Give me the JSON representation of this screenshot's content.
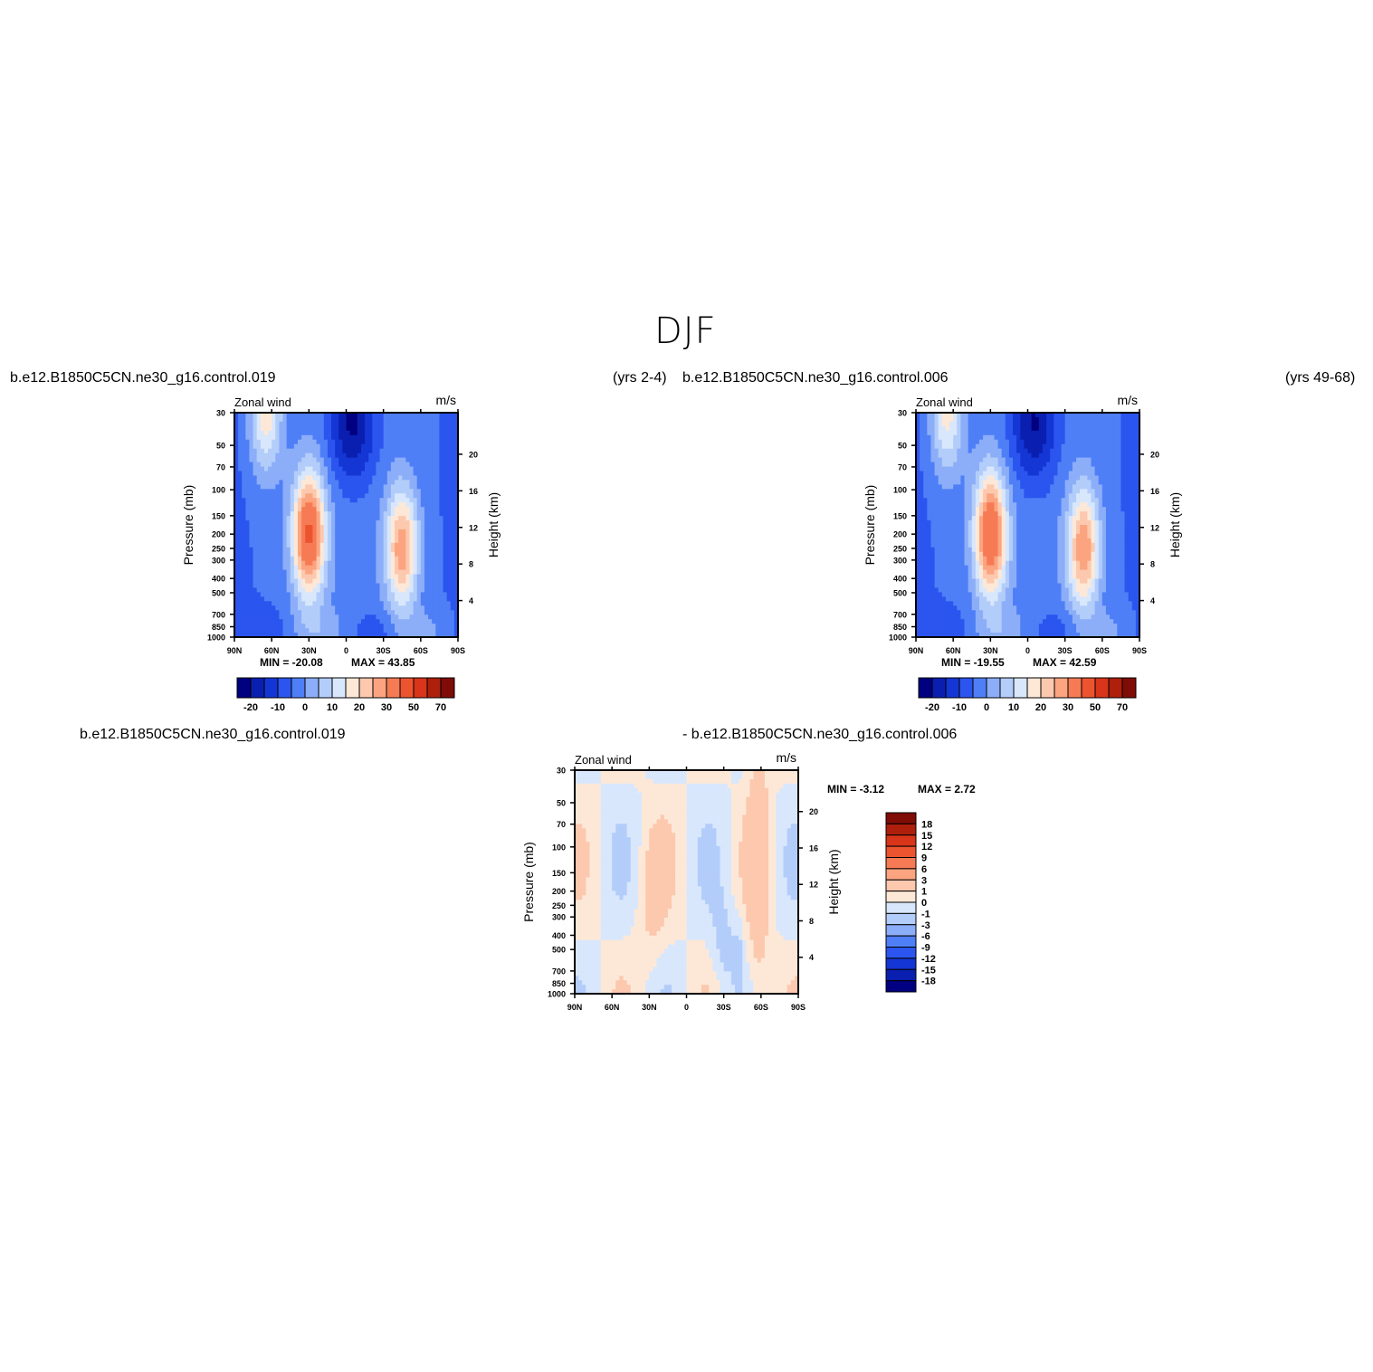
{
  "figure": {
    "title": "DJF",
    "top_left_caption": "b.e12.B1850C5CN.ne30_g16.control.019",
    "top_left_years": "(yrs 2-4)",
    "top_right_caption": "b.e12.B1850C5CN.ne30_g16.control.006",
    "top_right_years": "(yrs 49-68)",
    "bottom_left_caption": "b.e12.B1850C5CN.ne30_g16.control.019",
    "bottom_right_caption": "- b.e12.B1850C5CN.ne30_g16.control.006"
  },
  "palettes": {
    "field": [
      "#000080",
      "#0a1fb0",
      "#1436d4",
      "#2b55ee",
      "#4f7ff7",
      "#8caef9",
      "#b3cdfa",
      "#d8e7fc",
      "#fde8d7",
      "#fcc8ae",
      "#fba47f",
      "#f67b54",
      "#ec5430",
      "#d8351a",
      "#ae1f0c",
      "#7f0c06"
    ],
    "diff": [
      "#000080",
      "#0a1fb0",
      "#1436d4",
      "#2b55ee",
      "#4f7ff7",
      "#8caef9",
      "#b3cdfa",
      "#d8e7fc",
      "#fde8d7",
      "#fcc8ae",
      "#fba47f",
      "#f67b54",
      "#ec5430",
      "#d8351a",
      "#ae1f0c",
      "#7f0c06"
    ]
  },
  "chart_data": [
    {
      "type": "heatmap",
      "panel": "control.019",
      "title": "Zonal wind",
      "units": "m/s",
      "ylabel": "Pressure (mb)",
      "ylabel_right": "Height (km)",
      "x_ticks": [
        "90N",
        "60N",
        "30N",
        "0",
        "30S",
        "60S",
        "90S"
      ],
      "y_ticks": [
        "30",
        "50",
        "70",
        "100",
        "150",
        "200",
        "250",
        "300",
        "400",
        "500",
        "700",
        "850",
        "1000"
      ],
      "height_ticks": [
        "20",
        "16",
        "12",
        "8",
        "4"
      ],
      "min_label": "MIN = -20.08",
      "max_label": "MAX = 43.85",
      "colorbar_labels": [
        "-20",
        "-10",
        "0",
        "10",
        "20",
        "30",
        "50",
        "70"
      ],
      "xlim": [
        90,
        -90
      ],
      "ylim": [
        30,
        1000
      ],
      "jets": [
        {
          "lat": 30,
          "pressure": 200,
          "max": 43.85
        },
        {
          "lat": -45,
          "pressure": 250,
          "max": 32
        },
        {
          "lat": 65,
          "pressure": 30,
          "max": 22
        }
      ],
      "min_value": -20.08
    },
    {
      "type": "heatmap",
      "panel": "control.006",
      "title": "Zonal wind",
      "units": "m/s",
      "ylabel": "Pressure (mb)",
      "ylabel_right": "Height (km)",
      "x_ticks": [
        "90N",
        "60N",
        "30N",
        "0",
        "30S",
        "60S",
        "90S"
      ],
      "y_ticks": [
        "30",
        "50",
        "70",
        "100",
        "150",
        "200",
        "250",
        "300",
        "400",
        "500",
        "700",
        "850",
        "1000"
      ],
      "height_ticks": [
        "20",
        "16",
        "12",
        "8",
        "4"
      ],
      "min_label": "MIN = -19.55",
      "max_label": "MAX = 42.59",
      "colorbar_labels": [
        "-20",
        "-10",
        "0",
        "10",
        "20",
        "30",
        "50",
        "70"
      ],
      "xlim": [
        90,
        -90
      ],
      "ylim": [
        30,
        1000
      ],
      "jets": [
        {
          "lat": 30,
          "pressure": 200,
          "max": 42.59
        },
        {
          "lat": -45,
          "pressure": 250,
          "max": 33
        },
        {
          "lat": 65,
          "pressure": 30,
          "max": 21
        }
      ],
      "min_value": -19.55
    },
    {
      "type": "heatmap",
      "panel": "difference",
      "title": "Zonal wind",
      "units": "m/s",
      "ylabel": "Pressure (mb)",
      "ylabel_right": "Height (km)",
      "x_ticks": [
        "90N",
        "60N",
        "30N",
        "0",
        "30S",
        "60S",
        "90S"
      ],
      "y_ticks": [
        "30",
        "50",
        "70",
        "100",
        "150",
        "200",
        "250",
        "300",
        "400",
        "500",
        "700",
        "850",
        "1000"
      ],
      "height_ticks": [
        "20",
        "16",
        "12",
        "8",
        "4"
      ],
      "min_label": "MIN = -3.12",
      "max_label": "MAX = 2.72",
      "colorbar_labels": [
        "18",
        "15",
        "12",
        "9",
        "6",
        "3",
        "1",
        "0",
        "-1",
        "-3",
        "-6",
        "-9",
        "-12",
        "-15",
        "-18"
      ],
      "xlim": [
        90,
        -90
      ],
      "ylim": [
        30,
        1000
      ]
    }
  ]
}
